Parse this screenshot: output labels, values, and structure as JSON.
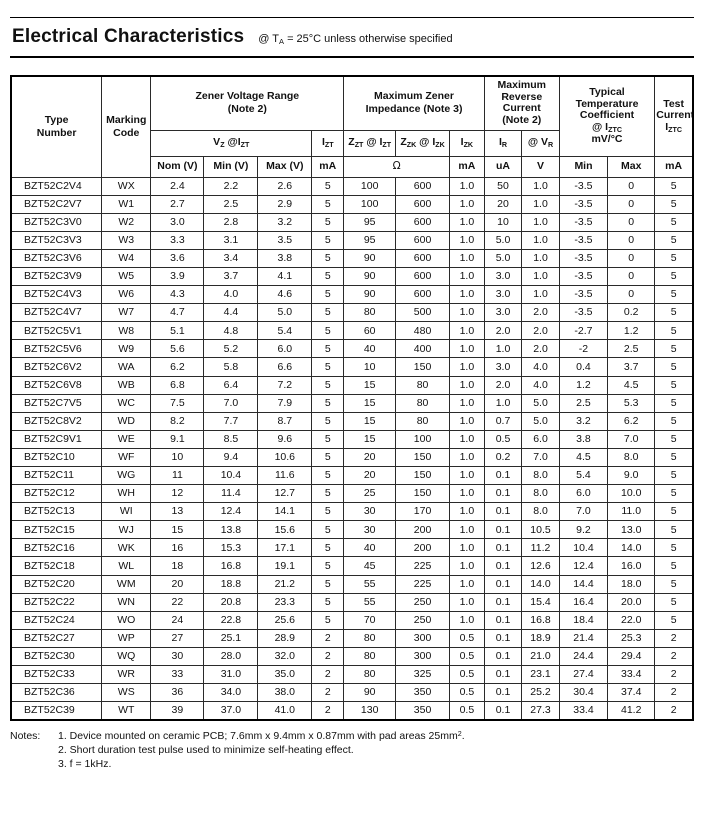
{
  "page": {
    "title": "Electrical Characteristics",
    "condition": "@ T_{A} = 25°C unless otherwise specified"
  },
  "table": {
    "group_headers": {
      "type_number": "Type\nNumber",
      "marking_code": "Marking\nCode",
      "zener_voltage_range": "Zener Voltage Range\n(Note 2)",
      "max_zener_impedance": "Maximum Zener\nImpedance (Note 3)",
      "max_reverse_current": "Maximum\nReverse\nCurrent\n(Note 2)",
      "typ_temp_coefficient": "Typical\nTemperature\nCoefficient\n@ I_{ZTC}\nmV/°C",
      "test_current": "Test\nCurrent\nI_{ZTC}"
    },
    "sub_headers": {
      "vz_izt": "V_{Z} @I_{ZT}",
      "izt": "I_{ZT}",
      "zzt_izt": "Z_{ZT} @ I_{ZT}",
      "zzk_izk": "Z_{ZK} @ I_{ZK}",
      "izk": "I_{ZK}",
      "ir": "I_{R}",
      "vr": "@ V_{R}"
    },
    "unit_headers": {
      "nom": "Nom (V)",
      "min": "Min (V)",
      "max": "Max (V)",
      "izt_ma": "mA",
      "ohm": "Ω",
      "izk_ma": "mA",
      "ir_ua": "uA",
      "vr_v": "V",
      "tc_min": "Min",
      "tc_max": "Max",
      "test_ma": "mA"
    },
    "column_keys": [
      "type-number",
      "marking-code",
      "vz-nom",
      "vz-min",
      "vz-max",
      "izt-ma",
      "zzt",
      "zzk",
      "izk-ma",
      "ir-ua",
      "vr-v",
      "tc-min",
      "tc-max",
      "iztc-ma"
    ],
    "rows": [
      [
        "BZT52C2V4",
        "WX",
        "2.4",
        "2.2",
        "2.6",
        "5",
        "100",
        "600",
        "1.0",
        "50",
        "1.0",
        "-3.5",
        "0",
        "5"
      ],
      [
        "BZT52C2V7",
        "W1",
        "2.7",
        "2.5",
        "2.9",
        "5",
        "100",
        "600",
        "1.0",
        "20",
        "1.0",
        "-3.5",
        "0",
        "5"
      ],
      [
        "BZT52C3V0",
        "W2",
        "3.0",
        "2.8",
        "3.2",
        "5",
        "95",
        "600",
        "1.0",
        "10",
        "1.0",
        "-3.5",
        "0",
        "5"
      ],
      [
        "BZT52C3V3",
        "W3",
        "3.3",
        "3.1",
        "3.5",
        "5",
        "95",
        "600",
        "1.0",
        "5.0",
        "1.0",
        "-3.5",
        "0",
        "5"
      ],
      [
        "BZT52C3V6",
        "W4",
        "3.6",
        "3.4",
        "3.8",
        "5",
        "90",
        "600",
        "1.0",
        "5.0",
        "1.0",
        "-3.5",
        "0",
        "5"
      ],
      [
        "BZT52C3V9",
        "W5",
        "3.9",
        "3.7",
        "4.1",
        "5",
        "90",
        "600",
        "1.0",
        "3.0",
        "1.0",
        "-3.5",
        "0",
        "5"
      ],
      [
        "BZT52C4V3",
        "W6",
        "4.3",
        "4.0",
        "4.6",
        "5",
        "90",
        "600",
        "1.0",
        "3.0",
        "1.0",
        "-3.5",
        "0",
        "5"
      ],
      [
        "BZT52C4V7",
        "W7",
        "4.7",
        "4.4",
        "5.0",
        "5",
        "80",
        "500",
        "1.0",
        "3.0",
        "2.0",
        "-3.5",
        "0.2",
        "5"
      ],
      [
        "BZT52C5V1",
        "W8",
        "5.1",
        "4.8",
        "5.4",
        "5",
        "60",
        "480",
        "1.0",
        "2.0",
        "2.0",
        "-2.7",
        "1.2",
        "5"
      ],
      [
        "BZT52C5V6",
        "W9",
        "5.6",
        "5.2",
        "6.0",
        "5",
        "40",
        "400",
        "1.0",
        "1.0",
        "2.0",
        "-2",
        "2.5",
        "5"
      ],
      [
        "BZT52C6V2",
        "WA",
        "6.2",
        "5.8",
        "6.6",
        "5",
        "10",
        "150",
        "1.0",
        "3.0",
        "4.0",
        "0.4",
        "3.7",
        "5"
      ],
      [
        "BZT52C6V8",
        "WB",
        "6.8",
        "6.4",
        "7.2",
        "5",
        "15",
        "80",
        "1.0",
        "2.0",
        "4.0",
        "1.2",
        "4.5",
        "5"
      ],
      [
        "BZT52C7V5",
        "WC",
        "7.5",
        "7.0",
        "7.9",
        "5",
        "15",
        "80",
        "1.0",
        "1.0",
        "5.0",
        "2.5",
        "5.3",
        "5"
      ],
      [
        "BZT52C8V2",
        "WD",
        "8.2",
        "7.7",
        "8.7",
        "5",
        "15",
        "80",
        "1.0",
        "0.7",
        "5.0",
        "3.2",
        "6.2",
        "5"
      ],
      [
        "BZT52C9V1",
        "WE",
        "9.1",
        "8.5",
        "9.6",
        "5",
        "15",
        "100",
        "1.0",
        "0.5",
        "6.0",
        "3.8",
        "7.0",
        "5"
      ],
      [
        "BZT52C10",
        "WF",
        "10",
        "9.4",
        "10.6",
        "5",
        "20",
        "150",
        "1.0",
        "0.2",
        "7.0",
        "4.5",
        "8.0",
        "5"
      ],
      [
        "BZT52C11",
        "WG",
        "11",
        "10.4",
        "11.6",
        "5",
        "20",
        "150",
        "1.0",
        "0.1",
        "8.0",
        "5.4",
        "9.0",
        "5"
      ],
      [
        "BZT52C12",
        "WH",
        "12",
        "11.4",
        "12.7",
        "5",
        "25",
        "150",
        "1.0",
        "0.1",
        "8.0",
        "6.0",
        "10.0",
        "5"
      ],
      [
        "BZT52C13",
        "WI",
        "13",
        "12.4",
        "14.1",
        "5",
        "30",
        "170",
        "1.0",
        "0.1",
        "8.0",
        "7.0",
        "11.0",
        "5"
      ],
      [
        "BZT52C15",
        "WJ",
        "15",
        "13.8",
        "15.6",
        "5",
        "30",
        "200",
        "1.0",
        "0.1",
        "10.5",
        "9.2",
        "13.0",
        "5"
      ],
      [
        "BZT52C16",
        "WK",
        "16",
        "15.3",
        "17.1",
        "5",
        "40",
        "200",
        "1.0",
        "0.1",
        "11.2",
        "10.4",
        "14.0",
        "5"
      ],
      [
        "BZT52C18",
        "WL",
        "18",
        "16.8",
        "19.1",
        "5",
        "45",
        "225",
        "1.0",
        "0.1",
        "12.6",
        "12.4",
        "16.0",
        "5"
      ],
      [
        "BZT52C20",
        "WM",
        "20",
        "18.8",
        "21.2",
        "5",
        "55",
        "225",
        "1.0",
        "0.1",
        "14.0",
        "14.4",
        "18.0",
        "5"
      ],
      [
        "BZT52C22",
        "WN",
        "22",
        "20.8",
        "23.3",
        "5",
        "55",
        "250",
        "1.0",
        "0.1",
        "15.4",
        "16.4",
        "20.0",
        "5"
      ],
      [
        "BZT52C24",
        "WO",
        "24",
        "22.8",
        "25.6",
        "5",
        "70",
        "250",
        "1.0",
        "0.1",
        "16.8",
        "18.4",
        "22.0",
        "5"
      ],
      [
        "BZT52C27",
        "WP",
        "27",
        "25.1",
        "28.9",
        "2",
        "80",
        "300",
        "0.5",
        "0.1",
        "18.9",
        "21.4",
        "25.3",
        "2"
      ],
      [
        "BZT52C30",
        "WQ",
        "30",
        "28.0",
        "32.0",
        "2",
        "80",
        "300",
        "0.5",
        "0.1",
        "21.0",
        "24.4",
        "29.4",
        "2"
      ],
      [
        "BZT52C33",
        "WR",
        "33",
        "31.0",
        "35.0",
        "2",
        "80",
        "325",
        "0.5",
        "0.1",
        "23.1",
        "27.4",
        "33.4",
        "2"
      ],
      [
        "BZT52C36",
        "WS",
        "36",
        "34.0",
        "38.0",
        "2",
        "90",
        "350",
        "0.5",
        "0.1",
        "25.2",
        "30.4",
        "37.4",
        "2"
      ],
      [
        "BZT52C39",
        "WT",
        "39",
        "37.0",
        "41.0",
        "2",
        "130",
        "350",
        "0.5",
        "0.1",
        "27.3",
        "33.4",
        "41.2",
        "2"
      ]
    ]
  },
  "notes": {
    "label": "Notes:",
    "items": [
      "1. Device mounted on ceramic PCB; 7.6mm x 9.4mm x 0.87mm with pad areas 25mm^{2}.",
      "2. Short duration test pulse used to minimize self-heating effect.",
      "3. f = 1kHz."
    ]
  }
}
